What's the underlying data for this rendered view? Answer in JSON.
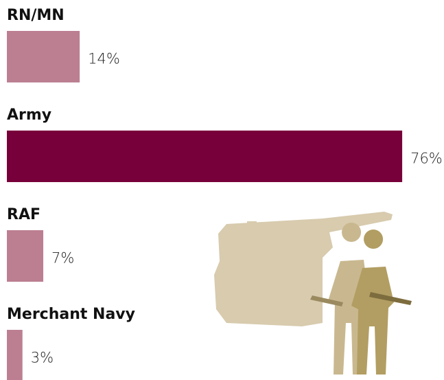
{
  "chart_data": {
    "type": "bar",
    "orientation": "horizontal",
    "categories": [
      "RN/MN",
      "Army",
      "RAF",
      "Merchant Navy"
    ],
    "values": [
      14,
      76,
      7,
      3
    ],
    "value_labels": [
      "14%",
      "76%",
      "7%",
      "3%"
    ],
    "colors": [
      "#bc7f92",
      "#78003a",
      "#bc7f92",
      "#bc7f92"
    ]
  }
}
